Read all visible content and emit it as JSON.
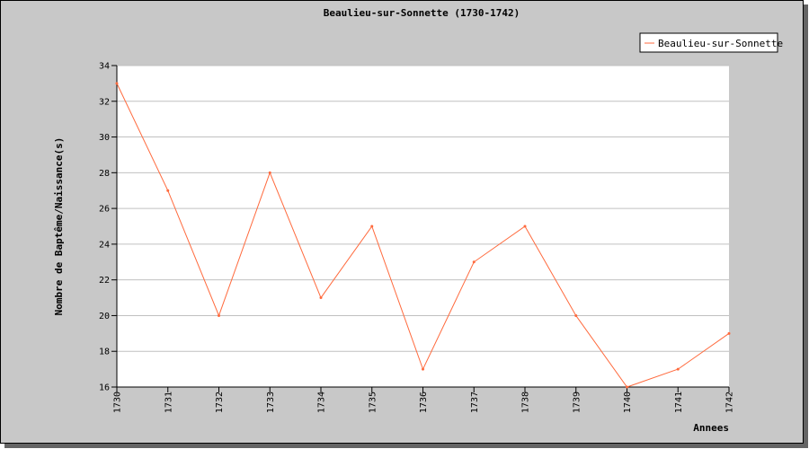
{
  "chart_data": {
    "type": "line",
    "title": "Beaulieu-sur-Sonnette (1730-1742)",
    "xlabel": "Annees",
    "ylabel": "Nombre de Baptême/Naissance(s)",
    "x": [
      "1730",
      "1731",
      "1732",
      "1733",
      "1734",
      "1735",
      "1736",
      "1737",
      "1738",
      "1739",
      "1740",
      "1741",
      "1742"
    ],
    "series": [
      {
        "name": "Beaulieu-sur-Sonnette",
        "color": "#ff6a3d",
        "values": [
          33,
          27,
          20,
          28,
          21,
          25,
          17,
          23,
          25,
          20,
          16,
          17,
          19
        ]
      }
    ],
    "ylim": [
      16,
      34
    ],
    "yticks": [
      16,
      18,
      20,
      22,
      24,
      26,
      28,
      30,
      32,
      34
    ],
    "grid": "horizontal",
    "legend_position": "top-right"
  }
}
